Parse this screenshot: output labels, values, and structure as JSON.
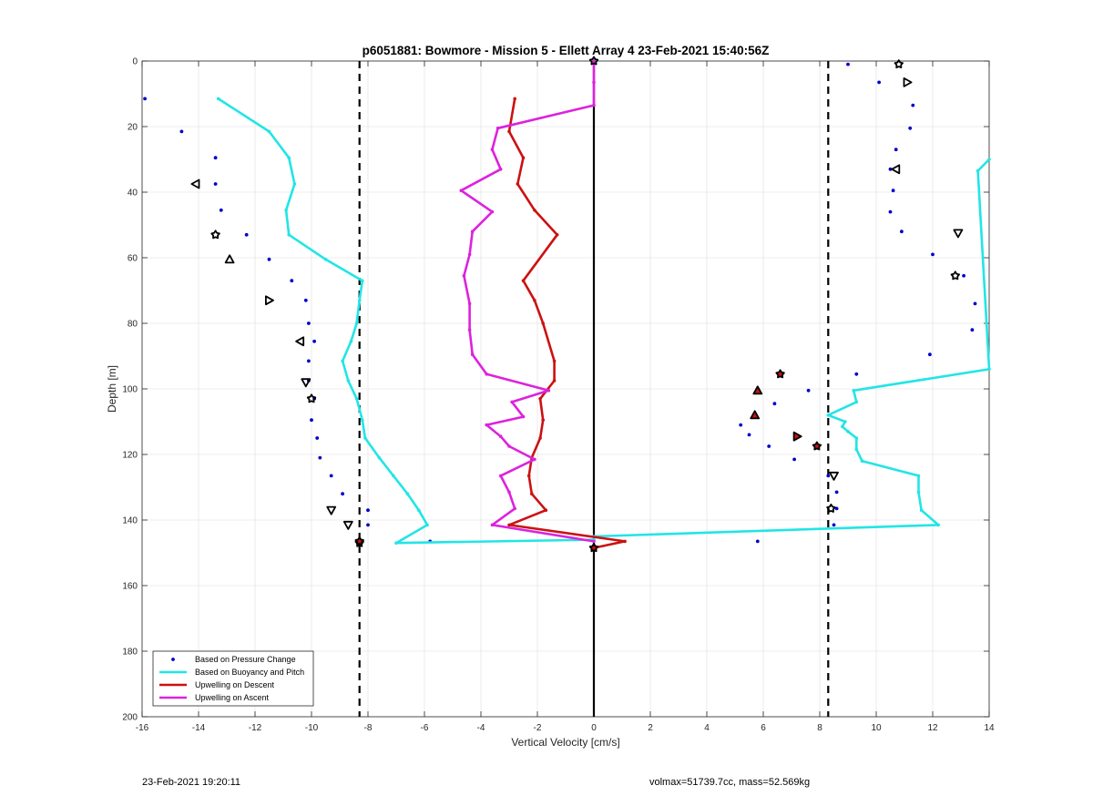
{
  "footer": {
    "left": "23-Feb-2021 19:20:11",
    "right": "volmax=51739.7cc, mass=52.569kg"
  },
  "chart_data": {
    "type": "line",
    "title": "p6051881: Bowmore - Mission 5 - Ellett Array 4 23-Feb-2021 15:40:56Z",
    "xlabel": "Vertical Velocity [cm/s]",
    "ylabel": "Depth [m]",
    "xlim": [
      -16,
      14
    ],
    "ylim": [
      0,
      200
    ],
    "y_reversed": true,
    "grid": true,
    "xticks": [
      -16,
      -14,
      -12,
      -10,
      -8,
      -6,
      -4,
      -2,
      0,
      2,
      4,
      6,
      8,
      10,
      12,
      14
    ],
    "yticks": [
      0,
      20,
      40,
      60,
      80,
      100,
      120,
      140,
      160,
      180,
      200
    ],
    "legend_position": "bottom-left",
    "reference_lines": [
      {
        "x": -8.3,
        "style": "dashed",
        "color": "#000000"
      },
      {
        "x": 8.3,
        "style": "dashed",
        "color": "#000000"
      },
      {
        "x": 0,
        "style": "solid",
        "color": "#000000"
      }
    ],
    "series": [
      {
        "name": "Based on Pressure Change",
        "style": "dots",
        "color": "#0000cc",
        "points": [
          [
            -15.9,
            11.5
          ],
          [
            -14.6,
            21.5
          ],
          [
            -13.4,
            29.5
          ],
          [
            -13.4,
            37.5
          ],
          [
            -13.2,
            45.5
          ],
          [
            -12.3,
            53
          ],
          [
            -11.5,
            60.5
          ],
          [
            -10.7,
            67
          ],
          [
            -10.2,
            73
          ],
          [
            -10.1,
            80
          ],
          [
            -9.9,
            85.5
          ],
          [
            -10.1,
            91.5
          ],
          [
            -10.1,
            97.5
          ],
          [
            -9.9,
            103
          ],
          [
            -10.0,
            109.5
          ],
          [
            -9.8,
            115
          ],
          [
            -9.7,
            121
          ],
          [
            -9.3,
            126.5
          ],
          [
            -8.9,
            132
          ],
          [
            -8.0,
            137
          ],
          [
            -8.0,
            141.5
          ],
          [
            -5.8,
            146.5
          ],
          [
            9.0,
            1
          ],
          [
            10.1,
            6.5
          ],
          [
            11.3,
            13.5
          ],
          [
            11.2,
            20.5
          ],
          [
            10.7,
            27
          ],
          [
            10.5,
            33
          ],
          [
            10.6,
            39.5
          ],
          [
            10.5,
            46
          ],
          [
            10.9,
            52
          ],
          [
            12.0,
            59
          ],
          [
            13.1,
            65.5
          ],
          [
            13.5,
            74
          ],
          [
            13.4,
            82
          ],
          [
            11.9,
            89.5
          ],
          [
            9.3,
            95.5
          ],
          [
            7.6,
            100.5
          ],
          [
            6.4,
            104.5
          ],
          [
            5.2,
            111
          ],
          [
            5.5,
            114
          ],
          [
            6.2,
            117.5
          ],
          [
            7.1,
            121.5
          ],
          [
            8.3,
            126.5
          ],
          [
            8.6,
            131.5
          ],
          [
            8.6,
            136.5
          ],
          [
            8.5,
            141.5
          ],
          [
            5.8,
            146.5
          ]
        ]
      },
      {
        "name": "Based on Buoyancy and Pitch",
        "style": "line",
        "color": "#22e5e5",
        "points": [
          [
            -13.3,
            11.5
          ],
          [
            -11.5,
            21.5
          ],
          [
            -10.8,
            29.5
          ],
          [
            -10.6,
            37.5
          ],
          [
            -10.9,
            45.5
          ],
          [
            -10.8,
            53
          ],
          [
            -9.5,
            60.5
          ],
          [
            -8.2,
            67
          ],
          [
            -8.3,
            73
          ],
          [
            -8.4,
            80
          ],
          [
            -8.6,
            85.5
          ],
          [
            -8.9,
            91.5
          ],
          [
            -8.7,
            97.5
          ],
          [
            -8.4,
            103
          ],
          [
            -8.2,
            109.5
          ],
          [
            -8.1,
            115
          ],
          [
            -7.6,
            121
          ],
          [
            -7.1,
            126.5
          ],
          [
            -6.6,
            132
          ],
          [
            -6.2,
            137
          ],
          [
            -5.9,
            141.5
          ],
          [
            -7.0,
            147
          ],
          [
            0.0,
            146
          ],
          [
            0.0,
            145
          ],
          [
            12.2,
            141.5
          ],
          [
            11.6,
            137
          ],
          [
            11.5,
            131.5
          ],
          [
            11.5,
            126.5
          ],
          [
            9.5,
            122
          ],
          [
            9.3,
            118.5
          ],
          [
            9.3,
            115
          ],
          [
            9.0,
            113
          ],
          [
            8.8,
            111.5
          ],
          [
            8.9,
            110
          ],
          [
            8.3,
            108
          ],
          [
            9.3,
            104
          ],
          [
            9.2,
            100.5
          ],
          [
            14.0,
            94
          ],
          [
            13.6,
            33.5
          ],
          [
            14.0,
            30
          ]
        ]
      },
      {
        "name": "Upwelling on Descent",
        "style": "line",
        "color": "#cc1111",
        "points": [
          [
            -2.8,
            11.5
          ],
          [
            -3.0,
            21.5
          ],
          [
            -2.5,
            29.5
          ],
          [
            -2.7,
            37.5
          ],
          [
            -2.1,
            45.5
          ],
          [
            -1.3,
            53
          ],
          [
            -2.5,
            67
          ],
          [
            -2.1,
            73
          ],
          [
            -1.8,
            80
          ],
          [
            -1.4,
            91.5
          ],
          [
            -1.4,
            97.5
          ],
          [
            -1.9,
            103
          ],
          [
            -1.8,
            109.5
          ],
          [
            -1.9,
            115
          ],
          [
            -2.2,
            121
          ],
          [
            -2.3,
            126.5
          ],
          [
            -2.2,
            132
          ],
          [
            -1.7,
            137
          ],
          [
            -3.0,
            141.5
          ],
          [
            1.1,
            146.5
          ],
          [
            0.0,
            148.5
          ]
        ]
      },
      {
        "name": "Upwelling on Ascent",
        "style": "line",
        "color": "#dd22dd",
        "points": [
          [
            0.0,
            0
          ],
          [
            0.0,
            6.5
          ],
          [
            0.0,
            13.5
          ],
          [
            -3.4,
            20.5
          ],
          [
            -3.6,
            27
          ],
          [
            -3.3,
            33
          ],
          [
            -4.7,
            39.5
          ],
          [
            -3.6,
            46
          ],
          [
            -4.3,
            52
          ],
          [
            -4.4,
            59
          ],
          [
            -4.6,
            65.5
          ],
          [
            -4.4,
            74
          ],
          [
            -4.4,
            82
          ],
          [
            -4.3,
            89.5
          ],
          [
            -3.8,
            95.5
          ],
          [
            -1.6,
            100.5
          ],
          [
            -2.9,
            104
          ],
          [
            -2.5,
            108.5
          ],
          [
            -3.8,
            111
          ],
          [
            -3.3,
            114.5
          ],
          [
            -3.0,
            117.5
          ],
          [
            -2.1,
            121.5
          ],
          [
            -3.3,
            126.5
          ],
          [
            -3.0,
            131.5
          ],
          [
            -2.8,
            136.5
          ],
          [
            -3.6,
            141.5
          ],
          [
            0.0,
            146.5
          ]
        ]
      },
      {
        "name": "",
        "style": "markers",
        "color": "#000000",
        "points": [
          [
            -14.1,
            37.5,
            "left"
          ],
          [
            -13.4,
            53,
            "star"
          ],
          [
            -12.9,
            60.5,
            "up"
          ],
          [
            -11.5,
            73,
            "right"
          ],
          [
            -10.4,
            85.5,
            "left"
          ],
          [
            -10.2,
            98,
            "down"
          ],
          [
            -10.0,
            103,
            "star"
          ],
          [
            -9.3,
            137,
            "down"
          ],
          [
            -8.7,
            141.5,
            "down"
          ],
          [
            -8.3,
            147,
            "star"
          ],
          [
            0.0,
            0,
            "star"
          ],
          [
            0.0,
            148.5,
            "star"
          ],
          [
            10.8,
            1,
            "star"
          ],
          [
            11.1,
            6.5,
            "right"
          ],
          [
            10.7,
            33,
            "left"
          ],
          [
            12.9,
            52.5,
            "down"
          ],
          [
            12.8,
            65.5,
            "star"
          ],
          [
            8.5,
            126.5,
            "down"
          ],
          [
            8.4,
            136.5,
            "star"
          ]
        ]
      },
      {
        "name": "",
        "style": "markers-filled",
        "color": "#cc1111",
        "points": [
          [
            -8.3,
            146.5,
            "star"
          ],
          [
            0.0,
            148.5,
            "star"
          ],
          [
            6.6,
            95.5,
            "star"
          ],
          [
            5.8,
            100.5,
            "up"
          ],
          [
            5.7,
            108,
            "up"
          ],
          [
            7.2,
            114.5,
            "right"
          ],
          [
            7.9,
            117.5,
            "star"
          ]
        ]
      }
    ]
  }
}
